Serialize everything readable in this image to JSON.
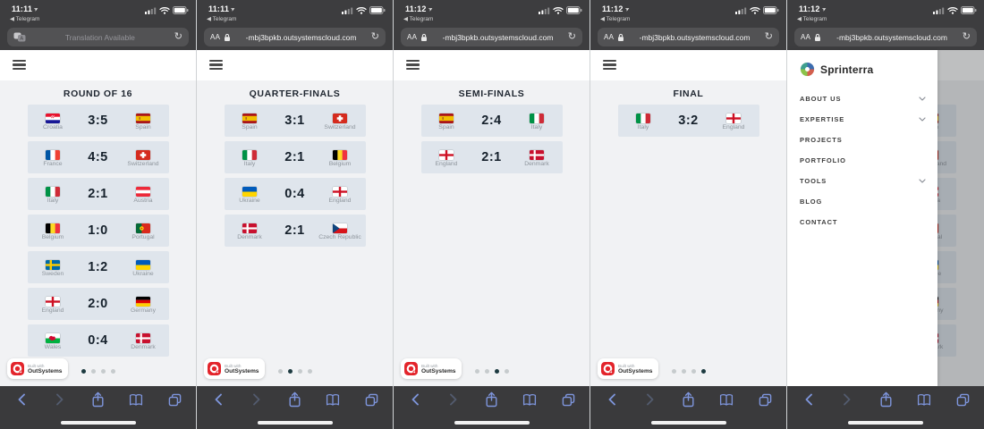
{
  "browser": {
    "back_app_label": "◀ Telegram",
    "reader_button": "AA",
    "url_text": "-mbj3bpkb.outsystemscloud.com",
    "translation_placeholder": "Translation Available",
    "reload_glyph": "↻"
  },
  "badge": {
    "line1": "Built with",
    "line2": "OutSystems"
  },
  "pagination_dots": 4,
  "panels": [
    {
      "time": "11:11",
      "urlbar": "translation",
      "view": "bracket",
      "title": "ROUND OF 16",
      "active_dot": 0,
      "matches": [
        {
          "home": "Croatia",
          "home_flag": "flag-croatia",
          "score": "3:5",
          "away": "Spain",
          "away_flag": "flag-spain"
        },
        {
          "home": "France",
          "home_flag": "flag-france",
          "score": "4:5",
          "away": "Switzerland",
          "away_flag": "flag-switzerland"
        },
        {
          "home": "Italy",
          "home_flag": "flag-italy",
          "score": "2:1",
          "away": "Austria",
          "away_flag": "flag-austria"
        },
        {
          "home": "Belgium",
          "home_flag": "flag-belgium",
          "score": "1:0",
          "away": "Portugal",
          "away_flag": "flag-portugal"
        },
        {
          "home": "Sweden",
          "home_flag": "flag-sweden",
          "score": "1:2",
          "away": "Ukraine",
          "away_flag": "flag-ukraine"
        },
        {
          "home": "England",
          "home_flag": "flag-england",
          "score": "2:0",
          "away": "Germany",
          "away_flag": "flag-germany"
        },
        {
          "home": "Wales",
          "home_flag": "flag-wales",
          "score": "0:4",
          "away": "Denmark",
          "away_flag": "flag-denmark"
        }
      ]
    },
    {
      "time": "11:11",
      "urlbar": "url",
      "view": "bracket",
      "title": "QUARTER-FINALS",
      "active_dot": 1,
      "matches": [
        {
          "home": "Spain",
          "home_flag": "flag-spain",
          "score": "3:1",
          "away": "Switzerland",
          "away_flag": "flag-switzerland"
        },
        {
          "home": "Italy",
          "home_flag": "flag-italy",
          "score": "2:1",
          "away": "Belgium",
          "away_flag": "flag-belgium"
        },
        {
          "home": "Ukraine",
          "home_flag": "flag-ukraine",
          "score": "0:4",
          "away": "England",
          "away_flag": "flag-england"
        },
        {
          "home": "Denmark",
          "home_flag": "flag-denmark",
          "score": "2:1",
          "away": "Czech Republic",
          "away_flag": "flag-czech-republic"
        }
      ]
    },
    {
      "time": "11:12",
      "urlbar": "url",
      "view": "bracket",
      "title": "SEMI-FINALS",
      "active_dot": 2,
      "matches": [
        {
          "home": "Spain",
          "home_flag": "flag-spain",
          "score": "2:4",
          "away": "Italy",
          "away_flag": "flag-italy"
        },
        {
          "home": "England",
          "home_flag": "flag-england",
          "score": "2:1",
          "away": "Denmark",
          "away_flag": "flag-denmark"
        }
      ]
    },
    {
      "time": "11:12",
      "urlbar": "url",
      "view": "bracket",
      "title": "FINAL",
      "active_dot": 3,
      "matches": [
        {
          "home": "Italy",
          "home_flag": "flag-italy",
          "score": "3:2",
          "away": "England",
          "away_flag": "flag-england"
        }
      ]
    },
    {
      "time": "11:12",
      "urlbar": "url",
      "view": "menu",
      "background_of_panel": 0,
      "menu": {
        "brand": "Sprinterra",
        "logo_icon": "euro-ball-logo",
        "items": [
          {
            "label": "ABOUT US",
            "expandable": true
          },
          {
            "label": "EXPERTISE",
            "expandable": true
          },
          {
            "label": "PROJECTS",
            "expandable": false
          },
          {
            "label": "PORTFOLIO",
            "expandable": false
          },
          {
            "label": "TOOLS",
            "expandable": true
          },
          {
            "label": "BLOG",
            "expandable": false
          },
          {
            "label": "CONTACT",
            "expandable": false
          }
        ]
      }
    }
  ],
  "colors": {
    "statusbar": "#3d3d3f",
    "toolbar": "#3a3a3c",
    "card": "#dfe5ec",
    "content": "#f1f2f4",
    "accent_blue": "#7e95dc",
    "dot_active": "#1c3a40",
    "outsystems_red": "#e3242b"
  }
}
